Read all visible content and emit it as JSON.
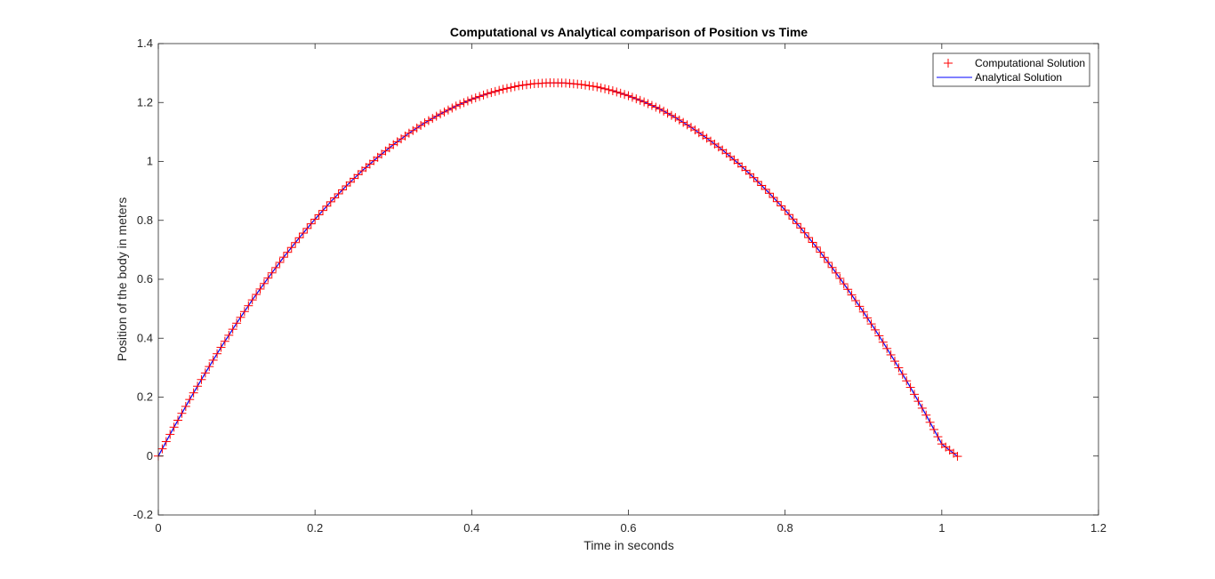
{
  "chart_data": {
    "type": "scatter",
    "title": "Computational vs Analytical comparison of Position vs Time",
    "xlabel": "Time in seconds",
    "ylabel": "Position of the body in meters",
    "xlim": [
      0,
      1.2
    ],
    "ylim": [
      -0.2,
      1.4
    ],
    "xticks": [
      0,
      0.2,
      0.4,
      0.6,
      0.8,
      1,
      1.2
    ],
    "yticks": [
      -0.2,
      0,
      0.2,
      0.4,
      0.6,
      0.8,
      1,
      1.2,
      1.4
    ],
    "xtick_labels": [
      "0",
      "0.2",
      "0.4",
      "0.6",
      "0.8",
      "1",
      "1.2"
    ],
    "ytick_labels": [
      "-0.2",
      "0",
      "0.2",
      "0.4",
      "0.6",
      "0.8",
      "1",
      "1.2",
      "1.4"
    ],
    "grid": false,
    "legend_position": "top-right",
    "series": [
      {
        "name": "Computational Solution",
        "kind": "markers",
        "marker": "+",
        "color": "#ff0000",
        "x": [
          0,
          0.02,
          0.04,
          0.06,
          0.08,
          0.1,
          0.12,
          0.14,
          0.16,
          0.18,
          0.2,
          0.22,
          0.24,
          0.26,
          0.28,
          0.3,
          0.32,
          0.34,
          0.36,
          0.38,
          0.4,
          0.42,
          0.44,
          0.46,
          0.48,
          0.5,
          0.52,
          0.54,
          0.56,
          0.58,
          0.6,
          0.62,
          0.64,
          0.66,
          0.68,
          0.7,
          0.72,
          0.74,
          0.76,
          0.78,
          0.8,
          0.82,
          0.84,
          0.86,
          0.88,
          0.9,
          0.92,
          0.94,
          0.96,
          0.98,
          1.0,
          1.02
        ],
        "y": [
          0,
          0.098,
          0.192,
          0.282,
          0.369,
          0.451,
          0.53,
          0.604,
          0.675,
          0.741,
          0.804,
          0.863,
          0.917,
          0.968,
          1.014,
          1.057,
          1.096,
          1.131,
          1.161,
          1.188,
          1.211,
          1.23,
          1.245,
          1.257,
          1.264,
          1.267,
          1.266,
          1.261,
          1.253,
          1.24,
          1.223,
          1.202,
          1.178,
          1.149,
          1.116,
          1.079,
          1.039,
          0.994,
          0.945,
          0.892,
          0.835,
          0.774,
          0.709,
          0.64,
          0.566,
          0.489,
          0.408,
          0.322,
          0.233,
          0.139,
          0.041,
          -0.001
        ]
      },
      {
        "name": "Analytical Solution",
        "kind": "line",
        "color": "#0000ff",
        "x": [
          0,
          0.02,
          0.04,
          0.06,
          0.08,
          0.1,
          0.12,
          0.14,
          0.16,
          0.18,
          0.2,
          0.22,
          0.24,
          0.26,
          0.28,
          0.3,
          0.32,
          0.34,
          0.36,
          0.38,
          0.4,
          0.42,
          0.44,
          0.46,
          0.48,
          0.5,
          0.52,
          0.54,
          0.56,
          0.58,
          0.6,
          0.62,
          0.64,
          0.66,
          0.68,
          0.7,
          0.72,
          0.74,
          0.76,
          0.78,
          0.8,
          0.82,
          0.84,
          0.86,
          0.88,
          0.9,
          0.92,
          0.94,
          0.96,
          0.98,
          1.0,
          1.02
        ],
        "y": [
          0,
          0.098,
          0.192,
          0.282,
          0.369,
          0.451,
          0.53,
          0.604,
          0.675,
          0.741,
          0.804,
          0.863,
          0.917,
          0.968,
          1.014,
          1.057,
          1.096,
          1.131,
          1.161,
          1.188,
          1.211,
          1.23,
          1.245,
          1.257,
          1.264,
          1.267,
          1.266,
          1.261,
          1.253,
          1.24,
          1.223,
          1.202,
          1.178,
          1.149,
          1.116,
          1.079,
          1.039,
          0.994,
          0.945,
          0.892,
          0.835,
          0.774,
          0.709,
          0.64,
          0.566,
          0.489,
          0.408,
          0.322,
          0.233,
          0.139,
          0.041,
          -0.001
        ]
      }
    ]
  },
  "colors": {
    "axis": "#262626",
    "background": "#ffffff"
  }
}
